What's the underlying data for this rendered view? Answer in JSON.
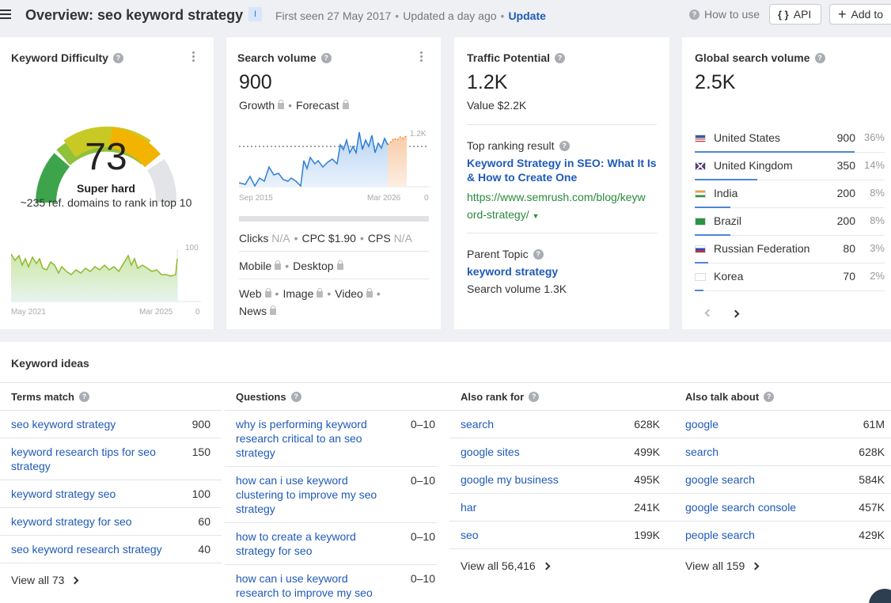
{
  "header": {
    "title": "Overview: seo keyword strategy",
    "intent": "I",
    "first_seen": "First seen 27 May 2017",
    "updated": "Updated a day ago",
    "update_link": "Update",
    "how_to_use": "How to use",
    "api_label": "API",
    "add_to_label": "Add to"
  },
  "kd": {
    "title": "Keyword Difficulty",
    "score": "73",
    "level": "Super hard",
    "note": "~235 ref. domains to rank in top 10",
    "gauge_value": 73,
    "chart_start": "May 2021",
    "chart_end": "Mar 2025",
    "axis_max": "100",
    "axis_min": "0",
    "colors": {
      "green": "#3ea44b",
      "yellow": "#e8c20f",
      "orange": "#f2a900",
      "gray": "#e2e4e7"
    }
  },
  "sv": {
    "title": "Search volume",
    "value": "900",
    "growth": "Growth",
    "forecast": "Forecast",
    "chart_start": "Sep 2015",
    "chart_end": "Mar 2026",
    "axis_max": "1.2K",
    "axis_min": "0",
    "clicks_label": "Clicks",
    "clicks_value": "N/A",
    "cpc": "CPC $1.90",
    "cps_label": "CPS",
    "cps_value": "N/A",
    "mobile": "Mobile",
    "desktop": "Desktop",
    "web": "Web",
    "image": "Image",
    "video": "Video",
    "news": "News"
  },
  "tp": {
    "title": "Traffic Potential",
    "value": "1.2K",
    "value_text": "Value $2.2K",
    "top_result_label": "Top ranking result",
    "top_result_title_1": "Keyword Strategy in SEO: What It Is",
    "top_result_title_2": "& How to Create One",
    "top_result_url_1": "https://www.semrush.com/blog/keyw",
    "top_result_url_2": "ord-strategy/",
    "parent_topic_label": "Parent Topic",
    "parent_topic": "keyword strategy",
    "parent_volume": "Search volume 1.3K"
  },
  "gs": {
    "title": "Global search volume",
    "value": "2.5K",
    "countries": [
      {
        "name": "United States",
        "volume": "900",
        "pct": "36%",
        "share": 0.36,
        "flag": "us-flag"
      },
      {
        "name": "United Kingdom",
        "volume": "350",
        "pct": "14%",
        "share": 0.14,
        "flag": "uk-flag"
      },
      {
        "name": "India",
        "volume": "200",
        "pct": "8%",
        "share": 0.08,
        "flag": "india-flag"
      },
      {
        "name": "Brazil",
        "volume": "200",
        "pct": "8%",
        "share": 0.08,
        "flag": "brazil-flag"
      },
      {
        "name": "Russian Federation",
        "volume": "80",
        "pct": "3%",
        "share": 0.03,
        "flag": "russia-flag"
      },
      {
        "name": "Korea",
        "volume": "70",
        "pct": "2%",
        "share": 0.02,
        "flag": "korea-flag"
      }
    ]
  },
  "ideas": {
    "title": "Keyword ideas",
    "terms": {
      "title": "Terms match",
      "items": [
        {
          "kw": "seo keyword strategy",
          "n": "900"
        },
        {
          "kw": "keyword research tips for seo strategy",
          "n": "150"
        },
        {
          "kw": "keyword strategy seo",
          "n": "100"
        },
        {
          "kw": "keyword strategy for seo",
          "n": "60"
        },
        {
          "kw": "seo keyword research strategy",
          "n": "40"
        }
      ],
      "view_all": "View all 73"
    },
    "questions": {
      "title": "Questions",
      "items": [
        {
          "kw": "why is performing keyword research critical to an seo strategy",
          "n": "0–10"
        },
        {
          "kw": "how can i use keyword clustering to improve my seo strategy",
          "n": "0–10"
        },
        {
          "kw": "how to create a keyword strategy for seo",
          "n": "0–10"
        },
        {
          "kw": "how can i use keyword research to improve my seo strategy",
          "n": "0–10"
        }
      ]
    },
    "also_rank": {
      "title": "Also rank for",
      "items": [
        {
          "kw": "search",
          "n": "628K"
        },
        {
          "kw": "google sites",
          "n": "499K"
        },
        {
          "kw": "google my business",
          "n": "495K"
        },
        {
          "kw": "har",
          "n": "241K"
        },
        {
          "kw": "seo",
          "n": "199K"
        }
      ],
      "view_all": "View all 56,416"
    },
    "also_talk": {
      "title": "Also talk about",
      "items": [
        {
          "kw": "google",
          "n": "61M"
        },
        {
          "kw": "search",
          "n": "628K"
        },
        {
          "kw": "google search",
          "n": "584K"
        },
        {
          "kw": "google search console",
          "n": "457K"
        },
        {
          "kw": "people search",
          "n": "429K"
        }
      ],
      "view_all": "View all 159"
    }
  }
}
